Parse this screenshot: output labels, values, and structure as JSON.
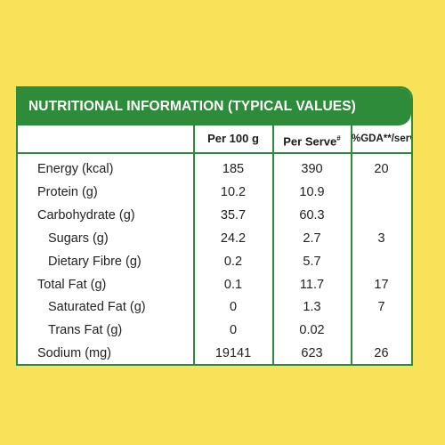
{
  "title": "NUTRITIONAL INFORMATION (TYPICAL VALUES)",
  "columns": {
    "per100": "Per 100 g",
    "perServe": "Per Serve",
    "perServeMark": "#",
    "gda": "%GDA**/serve"
  },
  "rows": [
    {
      "label": "Energy (kcal)",
      "per100": "185",
      "perServe": "390",
      "gda": "20",
      "indent": false
    },
    {
      "label": "Protein (g)",
      "per100": "10.2",
      "perServe": "10.9",
      "gda": "",
      "indent": false
    },
    {
      "label": "Carbohydrate (g)",
      "per100": "35.7",
      "perServe": "60.3",
      "gda": "",
      "indent": false
    },
    {
      "label": "Sugars (g)",
      "per100": "24.2",
      "perServe": "2.7",
      "gda": "3",
      "indent": true
    },
    {
      "label": "Dietary Fibre (g)",
      "per100": "0.2",
      "perServe": "5.7",
      "gda": "",
      "indent": true
    },
    {
      "label": "Total Fat (g)",
      "per100": "0.1",
      "perServe": "11.7",
      "gda": "17",
      "indent": false
    },
    {
      "label": "Saturated Fat (g)",
      "per100": "0",
      "perServe": "1.3",
      "gda": "7",
      "indent": true
    },
    {
      "label": "Trans Fat (g)",
      "per100": "0",
      "perServe": "0.02",
      "gda": "",
      "indent": true
    },
    {
      "label": "Sodium (mg)",
      "per100": "19141",
      "perServe": "623",
      "gda": "26",
      "indent": false
    }
  ],
  "colors": {
    "background": "#f7e25a",
    "accent": "#2e8b3a"
  }
}
